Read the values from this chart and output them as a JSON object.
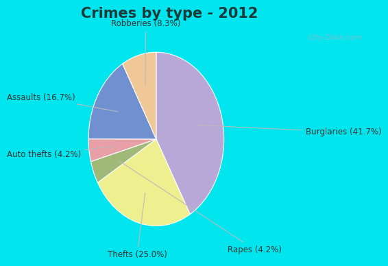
{
  "title": "Crimes by type - 2012",
  "title_fontsize": 15,
  "title_fontweight": "bold",
  "slices": [
    {
      "label": "Burglaries (41.7%)",
      "value": 41.7,
      "color": "#b8a8d8"
    },
    {
      "label": "Thefts (25.0%)",
      "value": 25.0,
      "color": "#eef090"
    },
    {
      "label": "Rapes (4.2%)",
      "value": 4.2,
      "color": "#a0b878"
    },
    {
      "label": "Auto thefts (4.2%)",
      "value": 4.2,
      "color": "#e8a0a8"
    },
    {
      "label": "Assaults (16.7%)",
      "value": 16.7,
      "color": "#7090d0"
    },
    {
      "label": "Robberies (8.3%)",
      "value": 8.3,
      "color": "#f0c898"
    }
  ],
  "border_color": "#00e5ee",
  "bg_gradient_outer": "#d8f0e8",
  "bg_gradient_inner": "#e8f8f0",
  "watermark": "City-Data.com",
  "label_fontsize": 8.5,
  "label_color": "#333333",
  "border_width": 10
}
